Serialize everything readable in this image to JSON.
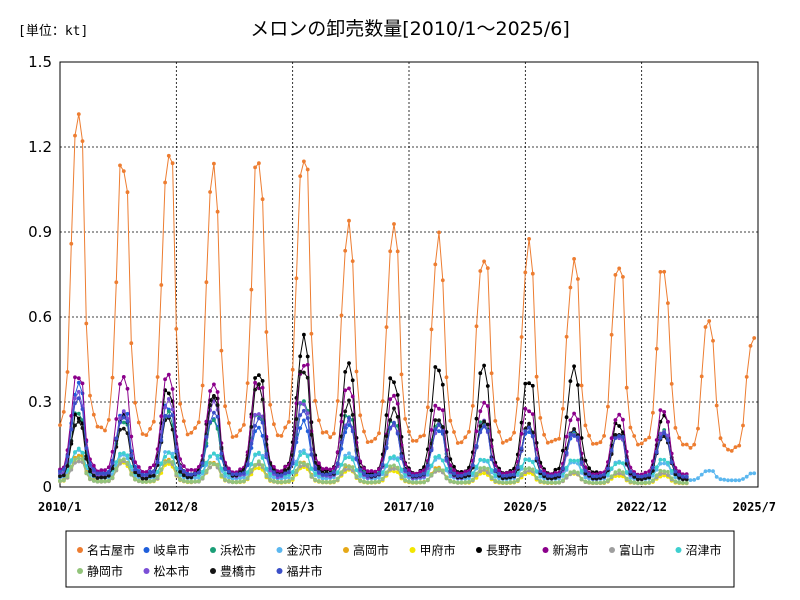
{
  "chart_data": {
    "type": "line",
    "title": "メロンの卸売数量[2010/1～2025/6]",
    "unit_label": "[単位：kt]",
    "ylim": [
      0,
      1.5
    ],
    "yticks": [
      "0",
      "0.3",
      "0.6",
      "0.9",
      "1.2",
      "1.5"
    ],
    "xlim": [
      "2010/1",
      "2025/7"
    ],
    "xticks": [
      "2010/1",
      "2012/8",
      "2015/3",
      "2017/10",
      "2020/5",
      "2022/12",
      "2025/7"
    ],
    "grid": true,
    "legend_position": "bottom",
    "series": [
      {
        "name": "名古屋市",
        "color": "#ED7D31",
        "summer_peaks": [
          1.39,
          1.18,
          1.24,
          1.13,
          1.19,
          1.28,
          0.96,
          0.92,
          0.89,
          0.89,
          0.89,
          0.81,
          0.81,
          0.79,
          0.59,
          0.58
        ],
        "winter_base": 0.08
      },
      {
        "name": "岐阜市",
        "color": "#1F5FDB",
        "summer_peaks": [
          0.37,
          0.28,
          0.3,
          0.24,
          0.22,
          0.24,
          0.22,
          0.23,
          0.22,
          0.22,
          0.2,
          0.2,
          0.2,
          0.2
        ],
        "winter_base": 0.02
      },
      {
        "name": "浜松市",
        "color": "#1A9E77",
        "summer_peaks": [
          0.27,
          0.24,
          0.27,
          0.25,
          0.28,
          0.31,
          0.27,
          0.24,
          0.25,
          0.24,
          0.22,
          0.2,
          0.19,
          0.2
        ],
        "winter_base": 0.02
      },
      {
        "name": "金沢市",
        "color": "#5BB7EF",
        "summer_peaks": [
          0.13,
          0.12,
          0.13,
          0.12,
          0.12,
          0.13,
          0.12,
          0.11,
          0.11,
          0.1,
          0.1,
          0.09,
          0.09,
          0.09,
          0.06,
          0.05
        ],
        "winter_base": 0.02
      },
      {
        "name": "高岡市",
        "color": "#E6A817",
        "summer_peaks": [
          0.12,
          0.1,
          0.1,
          0.09,
          0.09,
          0.09,
          0.08,
          0.07,
          0.07,
          0.06,
          0.06,
          0.05,
          0.05,
          0.05
        ],
        "winter_base": 0.01
      },
      {
        "name": "甲府市",
        "color": "#F2E600",
        "summer_peaks": [
          0.1,
          0.09,
          0.08,
          0.08,
          0.07,
          0.07,
          0.06,
          0.06,
          0.06,
          0.05,
          0.05,
          0.05,
          0.04,
          0.04
        ],
        "winter_base": 0.01
      },
      {
        "name": "長野市",
        "color": "#000000",
        "summer_peaks": [
          0.27,
          0.26,
          0.36,
          0.35,
          0.41,
          0.54,
          0.44,
          0.4,
          0.45,
          0.43,
          0.4,
          0.44,
          0.24,
          0.26
        ],
        "winter_base": 0.01
      },
      {
        "name": "新潟市",
        "color": "#8B008B",
        "summer_peaks": [
          0.41,
          0.39,
          0.43,
          0.38,
          0.39,
          0.47,
          0.39,
          0.32,
          0.31,
          0.31,
          0.29,
          0.27,
          0.27,
          0.28
        ],
        "winter_base": 0.02
      },
      {
        "name": "富山市",
        "color": "#9E9E9E",
        "summer_peaks": [
          0.1,
          0.09,
          0.09,
          0.08,
          0.08,
          0.08,
          0.07,
          0.07,
          0.06,
          0.06,
          0.06,
          0.05,
          0.05,
          0.05
        ],
        "winter_base": 0.01
      },
      {
        "name": "沼津市",
        "color": "#3ECFCF",
        "summer_peaks": [
          0.14,
          0.13,
          0.12,
          0.12,
          0.12,
          0.12,
          0.11,
          0.11,
          0.11,
          0.1,
          0.1,
          0.1,
          0.09,
          0.1
        ],
        "winter_base": 0.03
      },
      {
        "name": "静岡市",
        "color": "#92C47A",
        "summer_peaks": [
          0.11,
          0.1,
          0.1,
          0.09,
          0.09,
          0.09,
          0.08,
          0.08,
          0.07,
          0.07,
          0.07,
          0.06,
          0.06,
          0.06
        ],
        "winter_base": 0.01
      },
      {
        "name": "松本市",
        "color": "#7B4FD6",
        "summer_peaks": [
          0.33,
          0.27,
          0.32,
          0.3,
          0.28,
          0.32,
          0.25,
          0.24,
          0.22,
          0.24,
          0.22,
          0.2,
          0.19,
          0.2
        ],
        "winter_base": 0.01
      },
      {
        "name": "豊橋市",
        "color": "#141414",
        "summer_peaks": [
          0.25,
          0.23,
          0.25,
          0.32,
          0.37,
          0.42,
          0.3,
          0.28,
          0.26,
          0.24,
          0.22,
          0.22,
          0.2,
          0.19
        ],
        "winter_base": 0.01
      },
      {
        "name": "福井市",
        "color": "#3B4FC8",
        "summer_peaks": [
          0.33,
          0.26,
          0.28,
          0.27,
          0.25,
          0.27,
          0.24,
          0.23,
          0.22,
          0.22,
          0.21,
          0.2,
          0.2,
          0.19
        ],
        "winter_base": 0.02
      }
    ]
  }
}
